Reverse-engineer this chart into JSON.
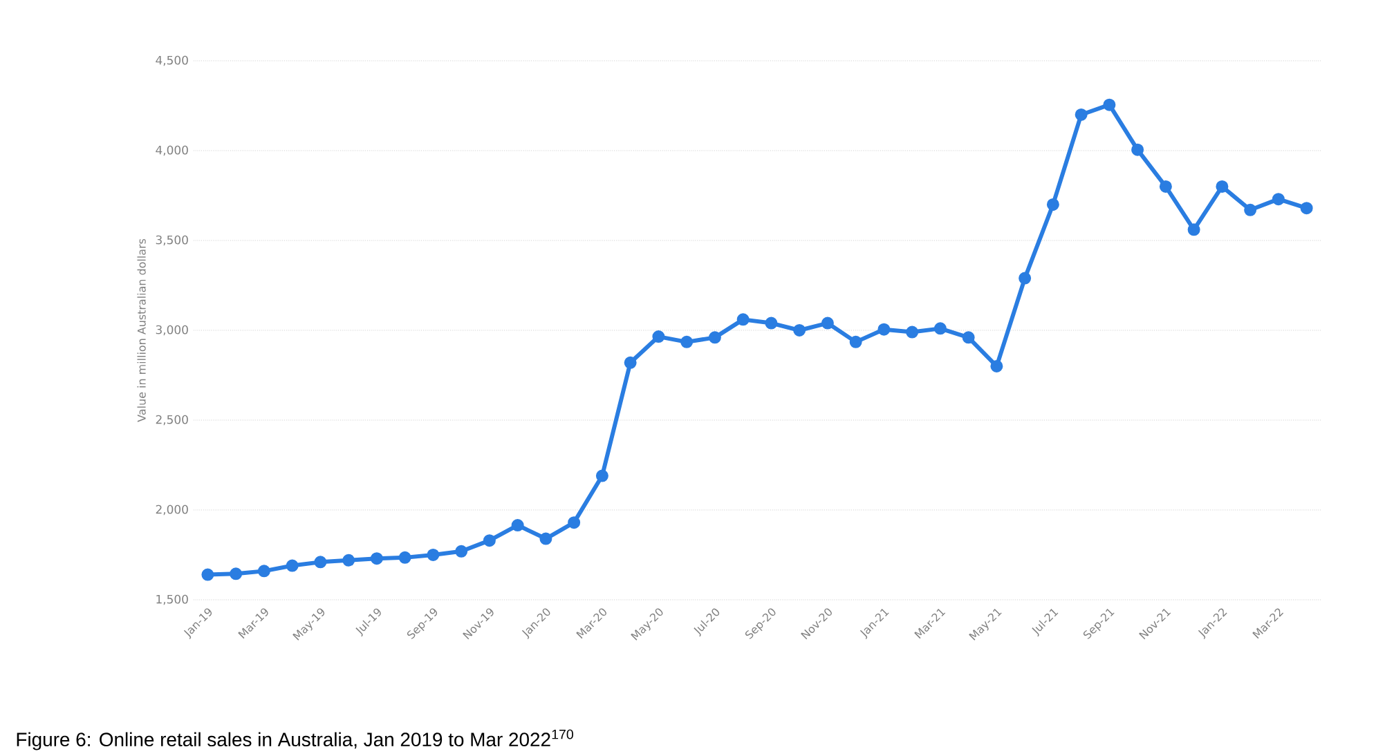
{
  "chart_data": {
    "type": "line",
    "title": "Figure 6: Online retail sales in Australia, Jan 2019 to Mar 2022$^{170}$",
    "ylabel": "Value in million Australian dollars",
    "categories": [
      "Jan-19",
      null,
      "Mar-19",
      null,
      "May-19",
      null,
      "Jul-19",
      null,
      "Sep-19",
      null,
      "Nov-19",
      null,
      "Jan-20",
      null,
      "Mar-20",
      null,
      "May-20",
      null,
      "Jul-20",
      null,
      "Sep-20",
      null,
      "Nov-20",
      null,
      "Jan-21",
      null,
      "Mar-21",
      null,
      "May-21",
      null,
      "Jul-21",
      null,
      "Sep-21",
      null,
      "Nov-21",
      null,
      "Jan-22",
      null,
      "Mar-22",
      null
    ],
    "series": [
      {
        "color": "#2a7de1",
        "values": [
          1640,
          1645,
          1660,
          1690,
          1710,
          1720,
          1730,
          1735,
          1750,
          1770,
          1830,
          1915,
          1840,
          1930,
          2190,
          2820,
          2965,
          2935,
          2960,
          3060,
          3040,
          3000,
          3040,
          2935,
          3005,
          2990,
          3010,
          2960,
          2800,
          3290,
          3700,
          4200,
          4255,
          4005,
          3800,
          3560,
          3800,
          3670,
          3730,
          3680
        ]
      }
    ],
    "ylim": [
      1500,
      4500
    ],
    "yticks": [
      {
        "value": 1500,
        "label": "1,500"
      },
      {
        "value": 2000,
        "label": "2,000"
      },
      {
        "value": 2500,
        "label": "2,500"
      },
      {
        "value": 3000,
        "label": "3,000"
      },
      {
        "value": 3500,
        "label": "3,500"
      },
      {
        "value": 4000,
        "label": "4,000"
      },
      {
        "value": 4500,
        "label": "4,500"
      }
    ],
    "grid": "y",
    "marker": "circle",
    "line_style": "solid"
  }
}
